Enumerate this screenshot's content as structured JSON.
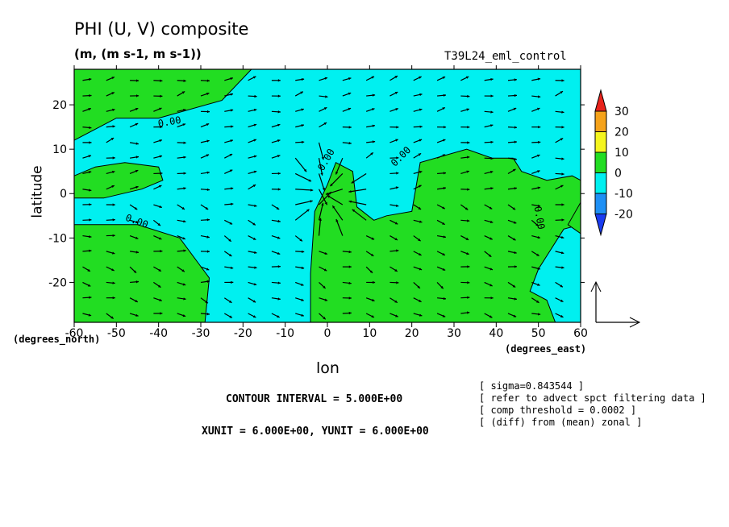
{
  "title": "PHI (U, V) composite",
  "units": "(m, (m s-1, m s-1))",
  "run_name": "T39L24_eml_control",
  "notes": [
    "[ sigma=0.843544 ]",
    "[ refer to advect spct filtering data ]",
    "[ comp threshold = 0.0002 ]",
    "[ (diff) from (mean) zonal ]"
  ],
  "contour_interval": "CONTOUR INTERVAL = 5.000E+00",
  "vector_units": "XUNIT = 6.000E+00, YUNIT = 6.000E+00",
  "chart_data": {
    "type": "heatmap",
    "xlabel": "lon",
    "ylabel": "latitude",
    "x_units_label": "(degrees_east)",
    "y_units_label": "(degrees_north)",
    "xlim": [
      -60,
      60
    ],
    "ylim": [
      -29,
      28
    ],
    "x_ticks": [
      -60,
      -50,
      -40,
      -30,
      -20,
      -10,
      0,
      10,
      20,
      30,
      40,
      50,
      60
    ],
    "y_ticks": [
      -20,
      -10,
      0,
      10,
      20
    ],
    "x_tick_labels": [
      "-60",
      "-50",
      "-40",
      "-30",
      "-20",
      "-10",
      "0",
      "10",
      "20",
      "30",
      "40",
      "50",
      "60"
    ],
    "y_tick_labels": [
      "-20",
      "-10",
      "0",
      "10",
      "20"
    ],
    "colorbar": {
      "levels": [
        30,
        20,
        10,
        0,
        -10,
        -20
      ],
      "labels": [
        "30",
        "20",
        "10",
        "0",
        "-10",
        "-20"
      ],
      "colors": [
        "#e8231c",
        "#f5a21a",
        "#f5f51e",
        "#22dd22",
        "#00f0f0",
        "#1e90f5",
        "#1a3cf0"
      ]
    },
    "contour_labels": [
      "0.00",
      "0.00",
      "0.00",
      "0.00",
      "0.00"
    ],
    "regions": [
      {
        "level": "0 to 10",
        "color": "#22dd22",
        "note": "positive anomaly",
        "lon_lat_outline": [
          [
            -60,
            28
          ],
          [
            -18,
            28
          ],
          [
            -25,
            21
          ],
          [
            -40,
            17
          ],
          [
            -50,
            17
          ],
          [
            -58,
            13
          ],
          [
            -60,
            12
          ]
        ]
      },
      {
        "level": "0 to 10",
        "color": "#22dd22",
        "lon_lat_outline": [
          [
            -60,
            4
          ],
          [
            -55,
            6
          ],
          [
            -48,
            7
          ],
          [
            -40,
            6
          ],
          [
            -39,
            3
          ],
          [
            -44,
            1
          ],
          [
            -53,
            -1
          ],
          [
            -60,
            -1
          ]
        ]
      },
      {
        "level": "0 to 10",
        "color": "#22dd22",
        "lon_lat_outline": [
          [
            -60,
            -7
          ],
          [
            -45,
            -7
          ],
          [
            -35,
            -10
          ],
          [
            -28,
            -19
          ],
          [
            -29,
            -29
          ],
          [
            -60,
            -29
          ]
        ]
      },
      {
        "level": "0 to 10",
        "color": "#22dd22",
        "lon_lat_outline": [
          [
            -4,
            -29
          ],
          [
            -4,
            -18
          ],
          [
            -3,
            -4
          ],
          [
            0,
            2
          ],
          [
            2,
            7
          ],
          [
            6,
            5
          ],
          [
            7,
            -3
          ],
          [
            11,
            -6
          ],
          [
            14,
            -5
          ],
          [
            20,
            -4
          ],
          [
            22,
            7
          ],
          [
            33,
            10
          ],
          [
            39,
            8
          ],
          [
            44,
            8
          ],
          [
            46,
            5
          ],
          [
            52,
            3
          ],
          [
            58,
            4
          ],
          [
            60,
            3
          ],
          [
            60,
            -7
          ],
          [
            56,
            -8
          ],
          [
            50,
            -17
          ],
          [
            48,
            -22
          ],
          [
            52,
            -24
          ],
          [
            54,
            -29
          ]
        ]
      },
      {
        "level": "0 to 10",
        "color": "#22dd22",
        "lon_lat_outline": [
          [
            60,
            -9
          ],
          [
            60,
            -2
          ],
          [
            57,
            -7
          ]
        ]
      }
    ],
    "vector_wind_reference": {
      "xunit": 6.0,
      "yunit": 6.0
    }
  }
}
